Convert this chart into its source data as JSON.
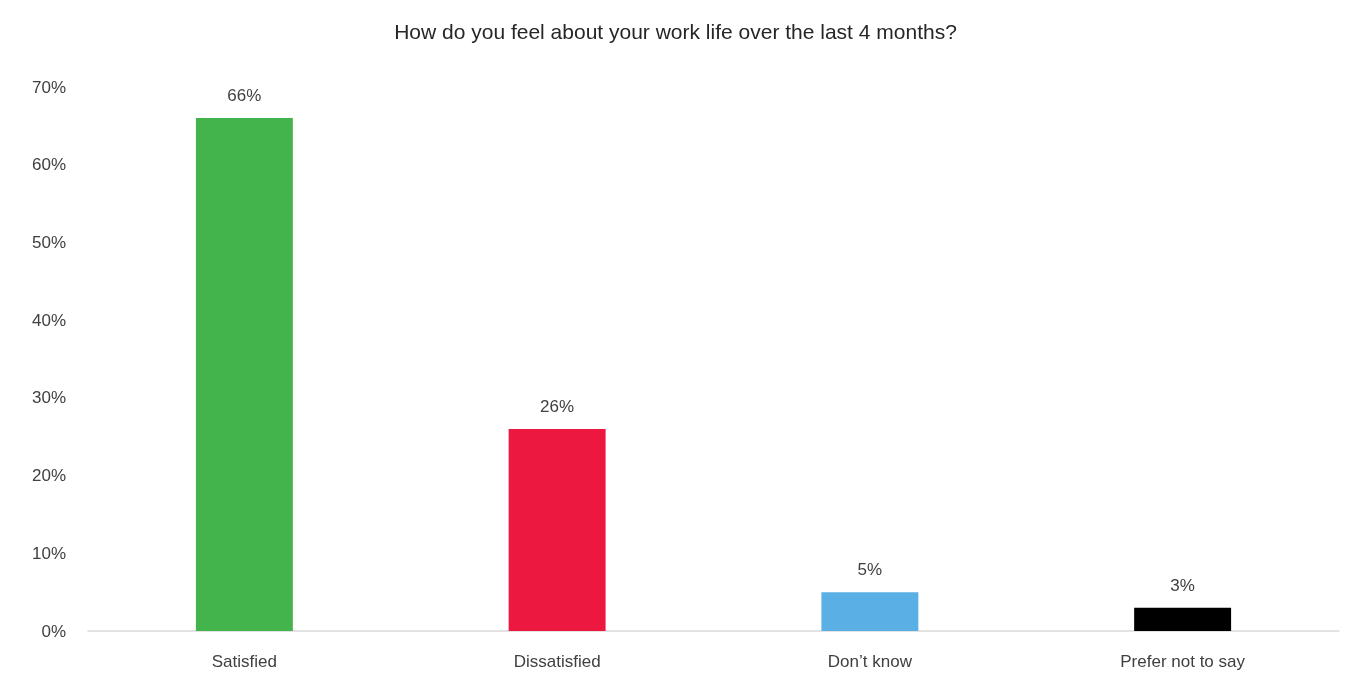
{
  "chart_data": {
    "type": "bar",
    "title": "How do you feel about your work life over the last 4 months?",
    "categories": [
      "Satisfied",
      "Dissatisfied",
      "Don’t know",
      "Prefer not to say"
    ],
    "values": [
      66,
      26,
      5,
      3
    ],
    "colors": [
      "#43b34b",
      "#ec1840",
      "#5aafe4",
      "#000000"
    ],
    "value_labels": [
      "66%",
      "26%",
      "5%",
      "3%"
    ],
    "ylim": [
      0,
      70
    ],
    "yticks": [
      {
        "value": 0,
        "label": "0%"
      },
      {
        "value": 10,
        "label": "10%"
      },
      {
        "value": 20,
        "label": "20%"
      },
      {
        "value": 30,
        "label": "30%"
      },
      {
        "value": 40,
        "label": "40%"
      },
      {
        "value": 50,
        "label": "50%"
      },
      {
        "value": 60,
        "label": "60%"
      },
      {
        "value": 70,
        "label": "70%"
      }
    ],
    "grid": false
  }
}
